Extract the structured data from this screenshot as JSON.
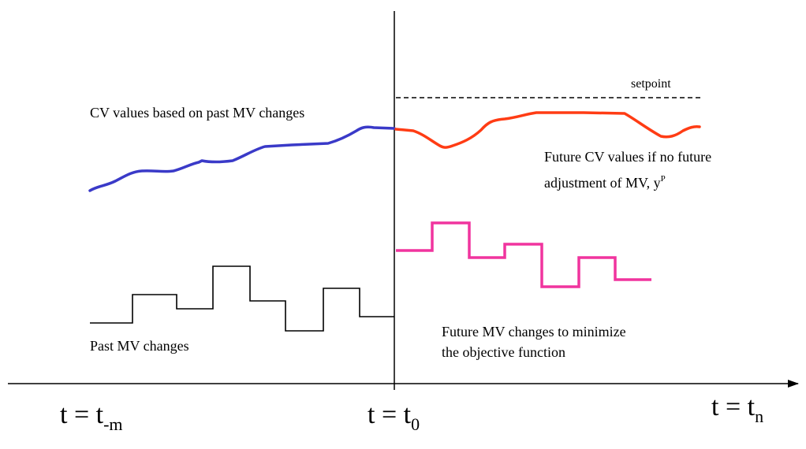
{
  "labels": {
    "setpoint": "setpoint",
    "cv_past": "CV values based on past MV changes",
    "cv_future_line1": "Future CV values if no future",
    "cv_future_line2_prefix": "adjustment of MV, y",
    "cv_future_line2_sup": "P",
    "mv_past": "Past MV changes",
    "mv_future_line1": "Future MV changes to minimize",
    "mv_future_line2": "the objective function"
  },
  "time_labels": {
    "t_minus_m": {
      "base": "t = t",
      "sub": "-m"
    },
    "t_zero": {
      "base": "t = t",
      "sub": "0"
    },
    "t_n": {
      "base": "t = t",
      "sub": "n"
    }
  },
  "colors": {
    "axis": "#000000",
    "cv_past": "#3a3ac8",
    "cv_future": "#ff3c14",
    "mv_past": "#000000",
    "mv_future": "#f0349e",
    "setpoint": "#000000"
  }
}
